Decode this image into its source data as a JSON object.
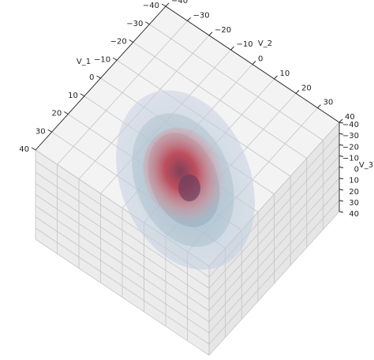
{
  "chart_data": {
    "type": "scatter3d",
    "xlabel": "V_1",
    "ylabel": "V_2",
    "zlabel": "V_3",
    "xlim": [
      -40,
      40
    ],
    "ylim": [
      -40,
      40
    ],
    "zlim": [
      -40,
      40
    ],
    "xticks": [
      {
        "value": -40,
        "label": "−40"
      },
      {
        "value": -30,
        "label": "−30"
      },
      {
        "value": -20,
        "label": "−20"
      },
      {
        "value": -10,
        "label": "−10"
      },
      0,
      10,
      20,
      30,
      40
    ],
    "yticks": [
      {
        "value": -40,
        "label": "−40"
      },
      {
        "value": -30,
        "label": "−30"
      },
      {
        "value": -20,
        "label": "−20"
      },
      {
        "value": -10,
        "label": "−10"
      },
      0,
      10,
      20,
      30,
      40
    ],
    "zticks": [
      {
        "value": -40,
        "label": "−40"
      },
      {
        "value": -30,
        "label": "−30"
      },
      {
        "value": -20,
        "label": "−20"
      },
      {
        "value": -10,
        "label": "−10"
      },
      0,
      10,
      20,
      30,
      40
    ],
    "grid": true
  }
}
